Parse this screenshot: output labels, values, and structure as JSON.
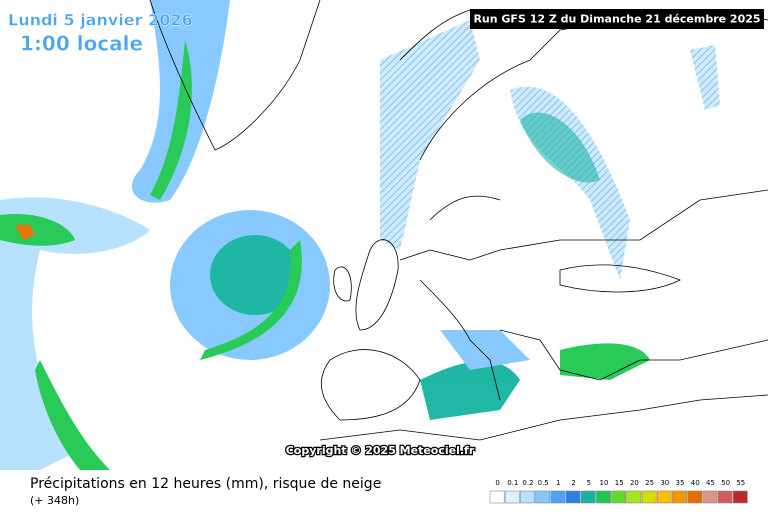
{
  "header": {
    "date": "Lundi 5 janvier 2026",
    "time": "1:00 locale",
    "run": "Run GFS 12 Z du Dimanche 21 décembre 2025"
  },
  "map": {
    "copyright": "Copyright © 2025 Meteociel.fr"
  },
  "footer": {
    "title": "Précipitations en 12 heures (mm), risque de neige",
    "lead": "(+ 348h)"
  },
  "legend": {
    "items": [
      {
        "label": "0",
        "color": "#ffffff"
      },
      {
        "label": "0.1",
        "color": "#dcf0ff"
      },
      {
        "label": "0.2",
        "color": "#b4e1ff"
      },
      {
        "label": "0.5",
        "color": "#82c8ff"
      },
      {
        "label": "1",
        "color": "#4ba5f5"
      },
      {
        "label": "2",
        "color": "#2882e6"
      },
      {
        "label": "5",
        "color": "#14b4a0"
      },
      {
        "label": "10",
        "color": "#1ec850"
      },
      {
        "label": "15",
        "color": "#64d728"
      },
      {
        "label": "20",
        "color": "#a5e61e"
      },
      {
        "label": "25",
        "color": "#d7dc00"
      },
      {
        "label": "30",
        "color": "#ffbe00"
      },
      {
        "label": "35",
        "color": "#f59600"
      },
      {
        "label": "40",
        "color": "#e66e00"
      },
      {
        "label": "45",
        "color": "#dc9682"
      },
      {
        "label": "50",
        "color": "#d25a5a"
      },
      {
        "label": "55",
        "color": "#be2828"
      }
    ]
  }
}
